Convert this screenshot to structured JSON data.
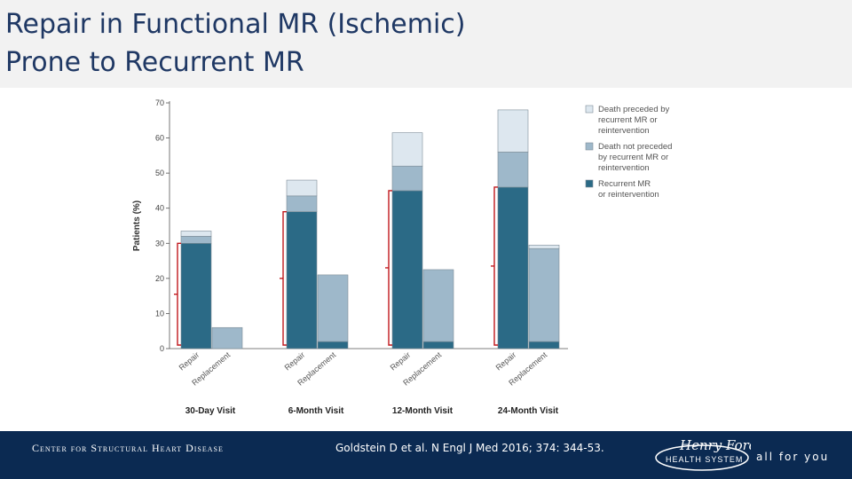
{
  "slide": {
    "title_line1": "Repair in Functional MR (Ischemic)",
    "title_line2": "Prone to Recurrent MR"
  },
  "footer": {
    "center_name": "Center for Structural Heart Disease",
    "citation": "Goldstein D et al. N Engl J Med 2016; 374: 344-53.",
    "logo_text_1": "Henry Ford",
    "logo_text_2": "HEALTH SYSTEM",
    "tagline": "all for you"
  },
  "colors": {
    "recurrent": "#2b6a86",
    "death_not_preceded": "#9eb8ca",
    "death_preceded": "#dde7ef",
    "bracket": "#c0181d",
    "title": "#1f3864",
    "footer_bg": "#0b2a52"
  },
  "chart_data": {
    "type": "bar",
    "stacked": true,
    "ylabel": "Patients (%)",
    "ylim": [
      0,
      70
    ],
    "yticks": [
      0,
      10,
      20,
      30,
      40,
      50,
      60,
      70
    ],
    "groups": [
      "30-Day Visit",
      "6-Month Visit",
      "12-Month Visit",
      "24-Month Visit"
    ],
    "bar_labels": [
      "Repair",
      "Replacement"
    ],
    "legend_position": "top-right",
    "series": [
      {
        "name": "Recurrent MR or reintervention",
        "color_key": "recurrent",
        "repair": [
          30,
          39,
          45,
          46
        ],
        "replacement": [
          0,
          2,
          2,
          2
        ]
      },
      {
        "name": "Death not preceded by recurrent MR or reintervention",
        "color_key": "death_not_preceded",
        "repair": [
          2,
          4.5,
          7,
          10
        ],
        "replacement": [
          6,
          19,
          20.5,
          26.5
        ]
      },
      {
        "name": "Death preceded by recurrent MR or reintervention",
        "color_key": "death_preceded",
        "repair": [
          1.5,
          4.5,
          9.5,
          12
        ],
        "replacement": [
          0,
          0,
          0,
          1
        ]
      }
    ]
  }
}
